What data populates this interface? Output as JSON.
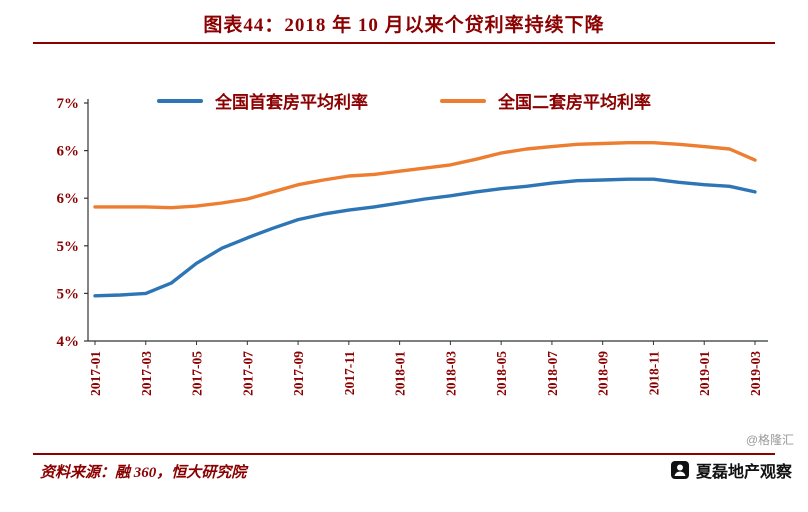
{
  "title": "图表44：2018 年 10 月以来个贷利率持续下降",
  "colors": {
    "text_red": "#8B0000",
    "first_home_line": "#2E75B6",
    "second_home_line": "#ED7D31",
    "axis": "#333333",
    "brand_black": "#111111",
    "watermark_gray": "#9a9a9a"
  },
  "footer": {
    "source": "资料来源：融 360，恒大研究院",
    "brand": "夏磊地产观察",
    "watermark": "@格隆汇"
  },
  "chart_data": {
    "type": "line",
    "title": "图表44：2018 年 10 月以来个贷利率持续下降",
    "xlabel": "",
    "ylabel": "",
    "ylim": [
      4.0,
      7.0
    ],
    "grid": false,
    "legend_position": "top",
    "x_label_rotation": -90,
    "x_label_every": 2,
    "x": [
      "2017-01",
      "2017-02",
      "2017-03",
      "2017-04",
      "2017-05",
      "2017-06",
      "2017-07",
      "2017-08",
      "2017-09",
      "2017-10",
      "2017-11",
      "2017-12",
      "2018-01",
      "2018-02",
      "2018-03",
      "2018-04",
      "2018-05",
      "2018-06",
      "2018-07",
      "2018-08",
      "2018-09",
      "2018-10",
      "2018-11",
      "2018-12",
      "2019-01",
      "2019-02",
      "2019-03"
    ],
    "y_ticks": [
      {
        "value": 7.0,
        "label": "7%"
      },
      {
        "value": 6.4,
        "label": "6%"
      },
      {
        "value": 5.8,
        "label": "6%"
      },
      {
        "value": 5.2,
        "label": "5%"
      },
      {
        "value": 4.6,
        "label": "5%"
      },
      {
        "value": 4.0,
        "label": "4%"
      }
    ],
    "series": [
      {
        "name": "全国首套房平均利率",
        "color": "#2E75B6",
        "values": [
          4.57,
          4.58,
          4.6,
          4.73,
          4.98,
          5.17,
          5.3,
          5.42,
          5.53,
          5.6,
          5.65,
          5.69,
          5.74,
          5.79,
          5.83,
          5.88,
          5.92,
          5.95,
          5.99,
          6.02,
          6.03,
          6.04,
          6.04,
          6.0,
          5.97,
          5.95,
          5.88
        ]
      },
      {
        "name": "全国二套房平均利率",
        "color": "#ED7D31",
        "values": [
          5.69,
          5.69,
          5.69,
          5.68,
          5.7,
          5.74,
          5.79,
          5.88,
          5.97,
          6.03,
          6.08,
          6.1,
          6.14,
          6.18,
          6.22,
          6.29,
          6.37,
          6.42,
          6.45,
          6.48,
          6.49,
          6.5,
          6.5,
          6.48,
          6.45,
          6.42,
          6.28
        ]
      }
    ]
  }
}
